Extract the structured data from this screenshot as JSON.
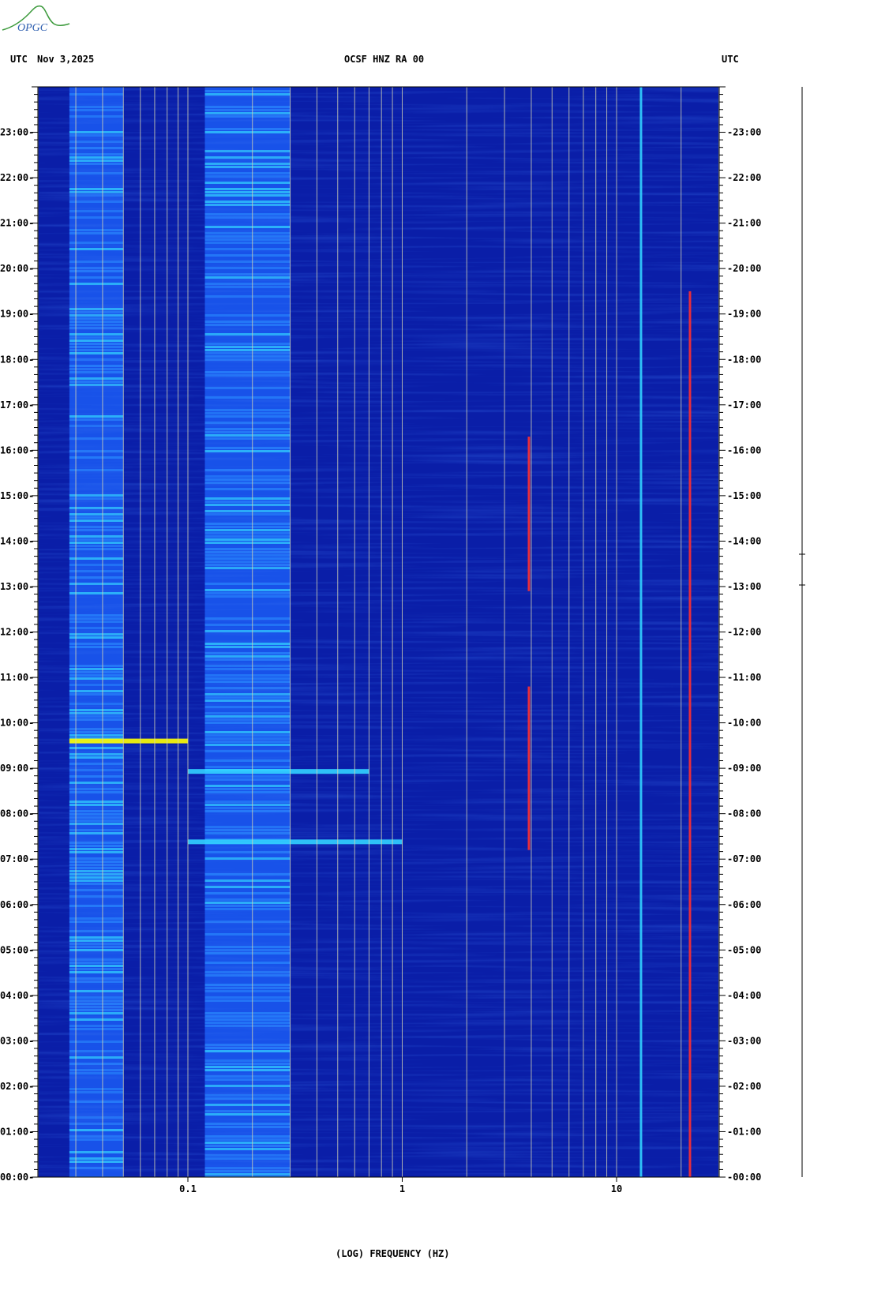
{
  "header": {
    "left_tz": "UTC",
    "date": "Nov 3,2025",
    "station": "OCSF HNZ RA 00",
    "right_tz": "UTC"
  },
  "logo": {
    "text": "OPGC"
  },
  "colors": {
    "background_low": "#0a1ea8",
    "mid": "#1e64ff",
    "high": "#32d2ff",
    "peak": "#ffff00",
    "hot": "#ff3030",
    "gridline": "#d2d2b4"
  },
  "chart_data": {
    "type": "heatmap",
    "title": "OCSF HNZ RA 00",
    "xlabel": "(LOG) FREQUENCY (HZ)",
    "x_scale": "log",
    "xlim": [
      0.02,
      30
    ],
    "xtick_labels": [
      "0.1",
      "1",
      "10"
    ],
    "xticks": [
      0.1,
      1,
      10
    ],
    "ylim_hours": [
      0,
      24
    ],
    "yticks": [
      "00:00",
      "01:00",
      "02:00",
      "03:00",
      "04:00",
      "05:00",
      "06:00",
      "07:00",
      "08:00",
      "09:00",
      "10:00",
      "11:00",
      "12:00",
      "13:00",
      "14:00",
      "15:00",
      "16:00",
      "17:00",
      "18:00",
      "19:00",
      "20:00",
      "21:00",
      "22:00",
      "23:00"
    ],
    "y_direction": "time increases upward",
    "grid": true,
    "features": [
      {
        "name": "microseism band",
        "freq_range_hz": [
          0.12,
          0.3
        ],
        "time_range_h": [
          0,
          24
        ],
        "level": "high"
      },
      {
        "name": "long-period band",
        "freq_range_hz": [
          0.028,
          0.05
        ],
        "time_range_h": [
          0,
          24
        ],
        "level": "high"
      },
      {
        "name": "strong event",
        "freq_range_hz": [
          0.028,
          0.1
        ],
        "time_h": 9.6,
        "level": "peak"
      },
      {
        "name": "event",
        "freq_range_hz": [
          0.1,
          0.7
        ],
        "time_h": 8.93,
        "level": "high"
      },
      {
        "name": "event",
        "freq_range_hz": [
          0.1,
          1.0
        ],
        "time_h": 7.38,
        "level": "high"
      },
      {
        "name": "narrowband line",
        "freq_hz": 3.9,
        "time_range_h": [
          12.9,
          16.3
        ],
        "level": "hot"
      },
      {
        "name": "narrowband line",
        "freq_hz": 3.9,
        "time_range_h": [
          7.2,
          10.8
        ],
        "level": "hot"
      },
      {
        "name": "narrowband line",
        "freq_hz": 22,
        "time_range_h": [
          0,
          19.5
        ],
        "level": "hot"
      },
      {
        "name": "narrowband line",
        "freq_hz": 13,
        "time_range_h": [
          0,
          24
        ],
        "level": "high"
      }
    ]
  }
}
